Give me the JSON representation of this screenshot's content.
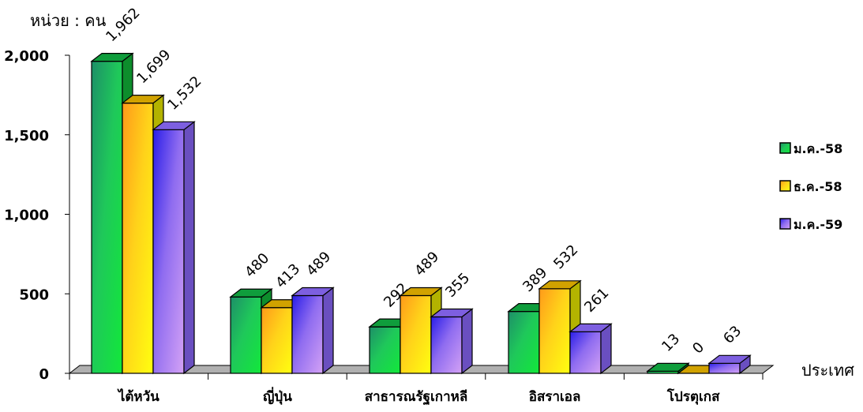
{
  "chart_data": {
    "type": "bar",
    "unit_label": "หน่วย : คน",
    "xlabel": "ประเทศ",
    "ylabel": "",
    "categories": [
      "ไต้หวัน",
      "ญี่ปุ่น",
      "สาธารณรัฐเกาหลี",
      "อิสราเอล",
      "โปรตุเกส"
    ],
    "series": [
      {
        "name": "ม.ค.-58",
        "values": [
          1962,
          480,
          292,
          389,
          13
        ],
        "color": "#22c04a"
      },
      {
        "name": "ธ.ค.-58",
        "values": [
          1699,
          413,
          489,
          532,
          0
        ],
        "color": "#ffd21a"
      },
      {
        "name": "ม.ค.-59",
        "values": [
          1532,
          489,
          355,
          261,
          63
        ],
        "color": "#8f6cf0"
      }
    ],
    "data_labels": [
      [
        "1,962",
        "480",
        "292",
        "389",
        "13"
      ],
      [
        "1,699",
        "413",
        "489",
        "532",
        "0"
      ],
      [
        "1,532",
        "489",
        "355",
        "261",
        "63"
      ]
    ],
    "yticks": [
      0,
      500,
      1000,
      1500,
      2000
    ],
    "ytick_labels": [
      "0",
      "500",
      "1,000",
      "1,500",
      "2,000"
    ],
    "ylim": [
      0,
      2000
    ],
    "grid": false,
    "legend_position": "right"
  }
}
